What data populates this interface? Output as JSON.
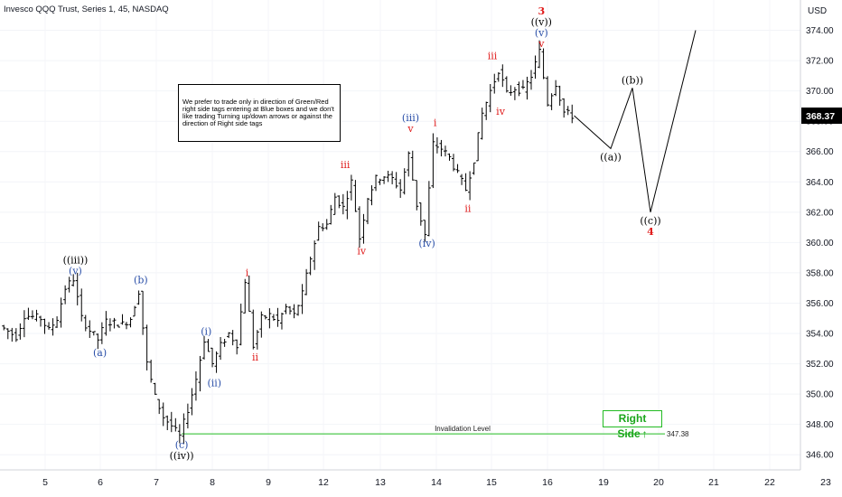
{
  "header": {
    "title": "Invesco QQQ Trust, Series 1, 45, NASDAQ"
  },
  "note": {
    "text": "We prefer to trade only in direction of Green/Red right side tags entering at Blue boxes and we don't like trading Turning up/down arrows or against the direction of Right side tags"
  },
  "right_side": {
    "label": "Right Side",
    "arrow": "↑",
    "color": "#1aa61a"
  },
  "colors": {
    "black": "#000000",
    "blue": "#2a4fa8",
    "red": "#e01b1b",
    "green": "#22bb22",
    "grid": "#f0f3fa"
  },
  "chart_data": {
    "type": "candlestick",
    "symbol": "QQQ",
    "interval": "45",
    "currency": "USD",
    "y_axis": {
      "label": "USD",
      "ticks": [
        346.0,
        348.0,
        350.0,
        352.0,
        354.0,
        356.0,
        358.0,
        360.0,
        362.0,
        364.0,
        366.0,
        368.0,
        370.0,
        372.0,
        374.0
      ],
      "range": [
        345.0,
        376.0
      ]
    },
    "x_axis": {
      "ticks": [
        "5",
        "6",
        "7",
        "8",
        "9",
        "12",
        "13",
        "14",
        "15",
        "16",
        "19",
        "20",
        "21",
        "22",
        "23"
      ]
    },
    "last_price": "368.37",
    "invalidation": {
      "label": "Invalidation Level",
      "value": 347.38,
      "value_label": "347.38"
    },
    "price_path": [
      [
        0,
        354.5
      ],
      [
        2,
        353.8
      ],
      [
        3,
        355.2
      ],
      [
        5,
        355.0
      ],
      [
        6,
        354.2
      ],
      [
        7,
        355.0
      ],
      [
        8,
        357.0
      ],
      [
        9,
        357.6
      ],
      [
        10,
        355.0
      ],
      [
        11,
        354.2
      ],
      [
        12,
        353.6
      ],
      [
        13,
        354.8
      ],
      [
        15,
        354.6
      ],
      [
        16,
        355.0
      ],
      [
        17,
        356.8
      ],
      [
        18,
        352.0
      ],
      [
        19,
        349.8
      ],
      [
        20,
        348.5
      ],
      [
        21,
        347.9
      ],
      [
        22,
        347.2
      ],
      [
        23,
        349.0
      ],
      [
        24,
        351.0
      ],
      [
        25,
        353.6
      ],
      [
        26,
        352.0
      ],
      [
        27,
        353.2
      ],
      [
        28,
        354.0
      ],
      [
        29,
        353.3
      ],
      [
        30,
        357.5
      ],
      [
        31,
        353.2
      ],
      [
        32,
        355.0
      ],
      [
        33,
        355.2
      ],
      [
        34,
        354.8
      ],
      [
        35,
        355.7
      ],
      [
        36,
        355.2
      ],
      [
        37,
        356.6
      ],
      [
        38,
        359.0
      ],
      [
        39,
        361.0
      ],
      [
        40,
        361.2
      ],
      [
        41,
        363.0
      ],
      [
        42,
        362.3
      ],
      [
        43,
        364.0
      ],
      [
        44,
        360.3
      ],
      [
        45,
        363.0
      ],
      [
        46,
        364.2
      ],
      [
        47,
        364.4
      ],
      [
        48,
        364.2
      ],
      [
        49,
        363.5
      ],
      [
        50,
        365.8
      ],
      [
        51,
        362.5
      ],
      [
        52,
        360.5
      ],
      [
        53,
        366.5
      ],
      [
        54,
        366.2
      ],
      [
        55,
        365.6
      ],
      [
        56,
        364.5
      ],
      [
        57,
        363.5
      ],
      [
        58,
        365.5
      ],
      [
        59,
        368.5
      ],
      [
        60,
        370.0
      ],
      [
        61,
        371.4
      ],
      [
        62,
        369.8
      ],
      [
        63,
        370.2
      ],
      [
        64,
        370.0
      ],
      [
        65,
        371.0
      ],
      [
        66,
        372.6
      ],
      [
        67,
        369.2
      ],
      [
        68,
        370.5
      ],
      [
        69,
        368.6
      ],
      [
        70,
        368.37
      ]
    ],
    "projection": [
      {
        "label": "((a))",
        "value": 366.2
      },
      {
        "label": "((b))",
        "value": 370.2
      },
      {
        "label": "((c))",
        "value": 362.0
      },
      {
        "label": "",
        "value": 374.0
      }
    ],
    "wave_labels": [
      {
        "text": "((iii))",
        "color": "black",
        "x": 9,
        "y": 357.6,
        "pos": "above2"
      },
      {
        "text": "(v)",
        "color": "blue",
        "x": 9,
        "y": 357.6,
        "pos": "above"
      },
      {
        "text": "(a)",
        "color": "blue",
        "x": 12,
        "y": 353.3,
        "pos": "below"
      },
      {
        "text": "(b)",
        "color": "blue",
        "x": 17,
        "y": 357.0,
        "pos": "above"
      },
      {
        "text": "(c)",
        "color": "blue",
        "x": 22,
        "y": 347.2,
        "pos": "below"
      },
      {
        "text": "((iv))",
        "color": "black",
        "x": 22,
        "y": 347.2,
        "pos": "below2"
      },
      {
        "text": "(i)",
        "color": "blue",
        "x": 25,
        "y": 353.6,
        "pos": "above"
      },
      {
        "text": "(ii)",
        "color": "blue",
        "x": 26,
        "y": 351.3,
        "pos": "below"
      },
      {
        "text": "i",
        "color": "red",
        "x": 30,
        "y": 357.5,
        "pos": "above"
      },
      {
        "text": "ii",
        "color": "red",
        "x": 31,
        "y": 353.0,
        "pos": "below"
      },
      {
        "text": "iii",
        "color": "red",
        "x": 42,
        "y": 364.6,
        "pos": "above"
      },
      {
        "text": "iv",
        "color": "red",
        "x": 44,
        "y": 360.0,
        "pos": "below"
      },
      {
        "text": "(iii)",
        "color": "blue",
        "x": 50,
        "y": 367.0,
        "pos": "above2"
      },
      {
        "text": "v",
        "color": "red",
        "x": 50,
        "y": 367.0,
        "pos": "above"
      },
      {
        "text": "(iv)",
        "color": "blue",
        "x": 52,
        "y": 360.5,
        "pos": "below"
      },
      {
        "text": "i",
        "color": "red",
        "x": 53,
        "y": 367.4,
        "pos": "above"
      },
      {
        "text": "ii",
        "color": "red",
        "x": 57,
        "y": 362.8,
        "pos": "below"
      },
      {
        "text": "iii",
        "color": "red",
        "x": 60,
        "y": 371.8,
        "pos": "above"
      },
      {
        "text": "iv",
        "color": "red",
        "x": 61,
        "y": 369.2,
        "pos": "below"
      },
      {
        "text": "3",
        "color": "red",
        "x": 66,
        "y": 372.6,
        "pos": "above4"
      },
      {
        "text": "((v))",
        "color": "black",
        "x": 66,
        "y": 372.6,
        "pos": "above3"
      },
      {
        "text": "(v)",
        "color": "blue",
        "x": 66,
        "y": 372.6,
        "pos": "above2"
      },
      {
        "text": "v",
        "color": "red",
        "x": 66,
        "y": 372.6,
        "pos": "above"
      },
      {
        "text": "((a))",
        "color": "black",
        "x": "p0",
        "y": 366.2,
        "pos": "below"
      },
      {
        "text": "((b))",
        "color": "black",
        "x": "p1",
        "y": 370.2,
        "pos": "above"
      },
      {
        "text": "((c))",
        "color": "black",
        "x": "p2",
        "y": 362.0,
        "pos": "below"
      },
      {
        "text": "4",
        "color": "red",
        "x": "p2",
        "y": 362.0,
        "pos": "below2"
      }
    ]
  }
}
